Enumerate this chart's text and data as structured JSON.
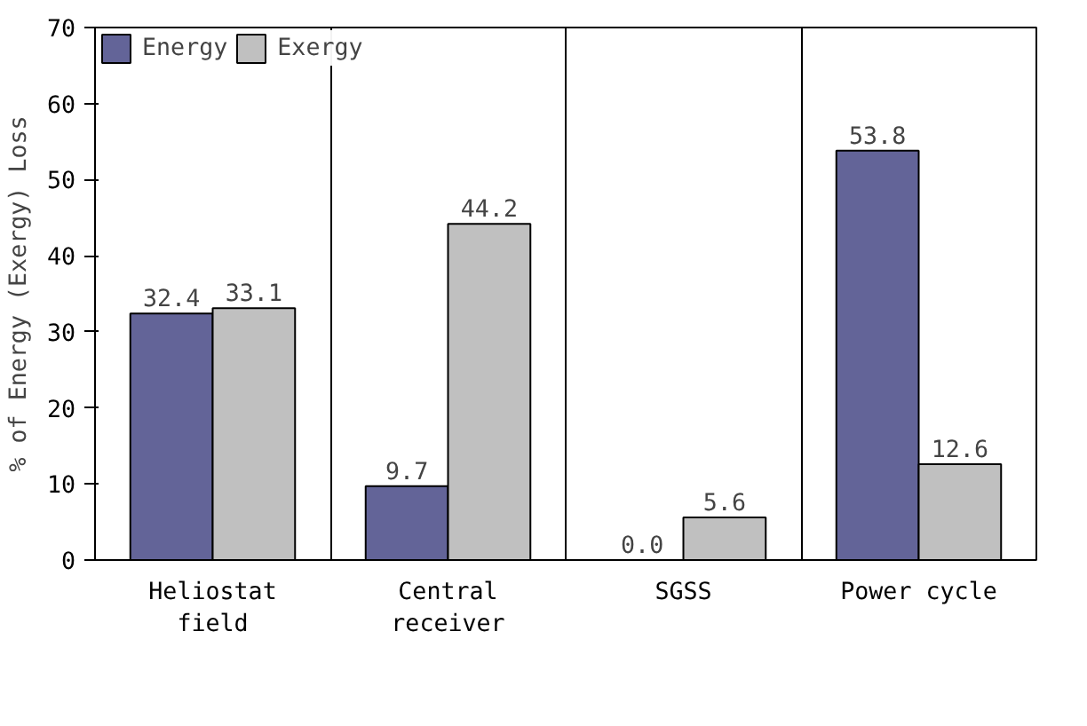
{
  "chart_data": {
    "type": "bar",
    "ylabel": "% of Energy (Exergy) Loss",
    "categories": [
      "Heliostat\nfield",
      "Central\nreceiver",
      "SGSS",
      "Power cycle"
    ],
    "series": [
      {
        "name": "Energy",
        "color": "#636498",
        "values": [
          32.4,
          9.7,
          0.0,
          53.8
        ],
        "value_labels": [
          "32.4",
          "9.7",
          "0.0",
          "53.8"
        ]
      },
      {
        "name": "Exergy",
        "color": "#c0c0c0",
        "values": [
          33.1,
          44.2,
          5.6,
          12.6
        ],
        "value_labels": [
          "33.1",
          "44.2",
          "5.6",
          "12.6"
        ]
      }
    ],
    "ylim": [
      0,
      70
    ],
    "yticks": [
      0,
      10,
      20,
      30,
      40,
      50,
      60,
      70
    ],
    "grid": "x",
    "legend": "top left"
  }
}
